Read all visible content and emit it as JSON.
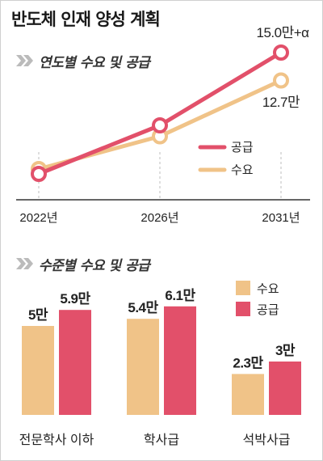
{
  "title": "반도체 인재 양성 계획",
  "colors": {
    "supply": "#e2506a",
    "demand": "#f0c388",
    "axis": "#333333",
    "gridline": "#bdbdbd",
    "section_icon": "#bbbbbb"
  },
  "chart_data": [
    {
      "type": "line",
      "title": "연도별 수요 및 공급",
      "categories": [
        "2022년",
        "2026년",
        "2031년"
      ],
      "series": [
        {
          "name": "공급",
          "values": [
            5.0,
            9.0,
            15.0
          ]
        },
        {
          "name": "수요",
          "values": [
            5.4,
            8.1,
            12.7
          ]
        }
      ],
      "annotations": {
        "supply_end": "15.0만+α",
        "demand_end": "12.7만"
      },
      "legend": {
        "position": "right",
        "items": [
          "공급",
          "수요"
        ]
      },
      "grid": false
    },
    {
      "type": "bar",
      "title": "수준별 수요 및 공급",
      "categories": [
        "전문학사 이하",
        "학사급",
        "석박사급"
      ],
      "series": [
        {
          "name": "수요",
          "values": [
            5.0,
            5.4,
            2.3
          ],
          "labels": [
            "5만",
            "5.4만",
            "2.3만"
          ]
        },
        {
          "name": "공급",
          "values": [
            5.9,
            6.1,
            3.0
          ],
          "labels": [
            "5.9만",
            "6.1만",
            "3만"
          ]
        }
      ],
      "legend": {
        "position": "top-right",
        "items": [
          "수요",
          "공급"
        ]
      }
    }
  ]
}
